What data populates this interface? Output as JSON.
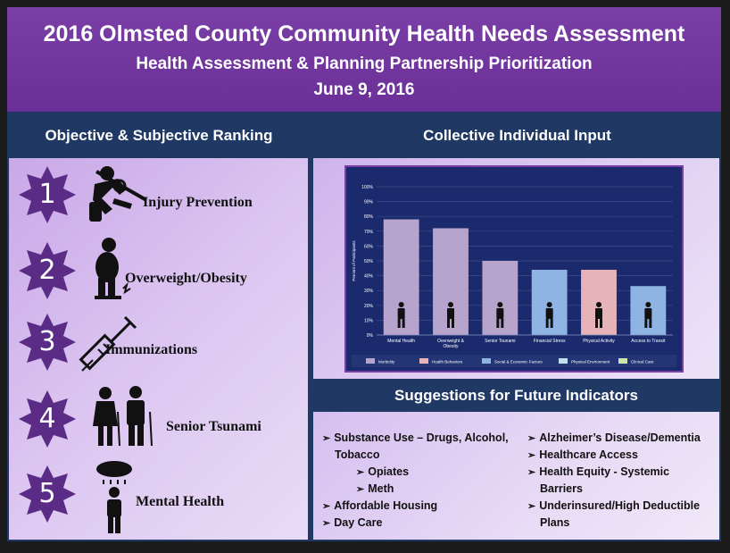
{
  "header": {
    "title": "2016 Olmsted County Community Health Needs Assessment",
    "subtitle": "Health Assessment & Planning Partnership Prioritization",
    "date": "June 9, 2016"
  },
  "left": {
    "heading": "Objective & Subjective Ranking",
    "items": [
      {
        "num": "1",
        "label": "Injury Prevention",
        "icon": "car-crash-icon"
      },
      {
        "num": "2",
        "label": "Overweight/Obesity",
        "icon": "obese-person-icon"
      },
      {
        "num": "3",
        "label": "Immunizations",
        "icon": "syringe-icon"
      },
      {
        "num": "4",
        "label": "Senior Tsunami",
        "icon": "elderly-couple-icon"
      },
      {
        "num": "5",
        "label": "Mental Health",
        "icon": "rain-cloud-person-icon"
      }
    ]
  },
  "right": {
    "heading": "Collective Individual Input",
    "suggest_heading": "Suggestions for Future Indicators",
    "suggestions_left": [
      {
        "text": "Substance Use – Drugs, Alcohol,",
        "indent": 0,
        "arrow": true
      },
      {
        "text": "Tobacco",
        "indent": 0,
        "arrow": false
      },
      {
        "text": "Opiates",
        "indent": 1,
        "arrow": true
      },
      {
        "text": "Meth",
        "indent": 1,
        "arrow": true
      },
      {
        "text": "Affordable Housing",
        "indent": 0,
        "arrow": true
      },
      {
        "text": "Day Care",
        "indent": 0,
        "arrow": true
      }
    ],
    "suggestions_right": [
      {
        "text": "Alzheimer’s Disease/Dementia",
        "arrow": true
      },
      {
        "text": "Healthcare Access",
        "arrow": true
      },
      {
        "text": "Health Equity - Systemic",
        "arrow": true
      },
      {
        "text": "Barriers",
        "arrow": false
      },
      {
        "text": "Underinsured/High Deductible",
        "arrow": true
      },
      {
        "text": "Plans",
        "arrow": false
      }
    ]
  },
  "colors": {
    "purple": "#6b2f98",
    "navy": "#1f3864",
    "star": "#5b2c86",
    "morbidity": "#b6a4cc",
    "health_behaviors": "#e6b3b8",
    "social_economic": "#8fb4e3",
    "physical_environment": "#bfe1ef",
    "clinical_care": "#cfe3b0"
  },
  "chart_data": {
    "type": "bar",
    "ylabel": "Percent of Participants",
    "ylim": [
      0,
      100
    ],
    "yticks": [
      "0%",
      "10%",
      "20%",
      "30%",
      "40%",
      "50%",
      "60%",
      "70%",
      "80%",
      "90%",
      "100%"
    ],
    "categories": [
      "Mental Health",
      "Overweight & Obesity",
      "Senior Tsunami",
      "Financial Stress",
      "Physical Activity",
      "Access to Transit"
    ],
    "values": [
      78,
      72,
      50,
      44,
      44,
      33
    ],
    "bar_groups": [
      "Morbidity",
      "Morbidity",
      "Morbidity",
      "Social & Economic Factors",
      "Health Behaviors",
      "Social & Economic Factors"
    ],
    "legend": [
      "Morbidity",
      "Health Behaviors",
      "Social & Economic Factors",
      "Physical Environment",
      "Clinical Care"
    ],
    "legend_colors": [
      "#b6a4cc",
      "#e6b3b8",
      "#8fb4e3",
      "#bfe1ef",
      "#cfe3b0"
    ],
    "grid": true,
    "legend_position": "bottom"
  }
}
